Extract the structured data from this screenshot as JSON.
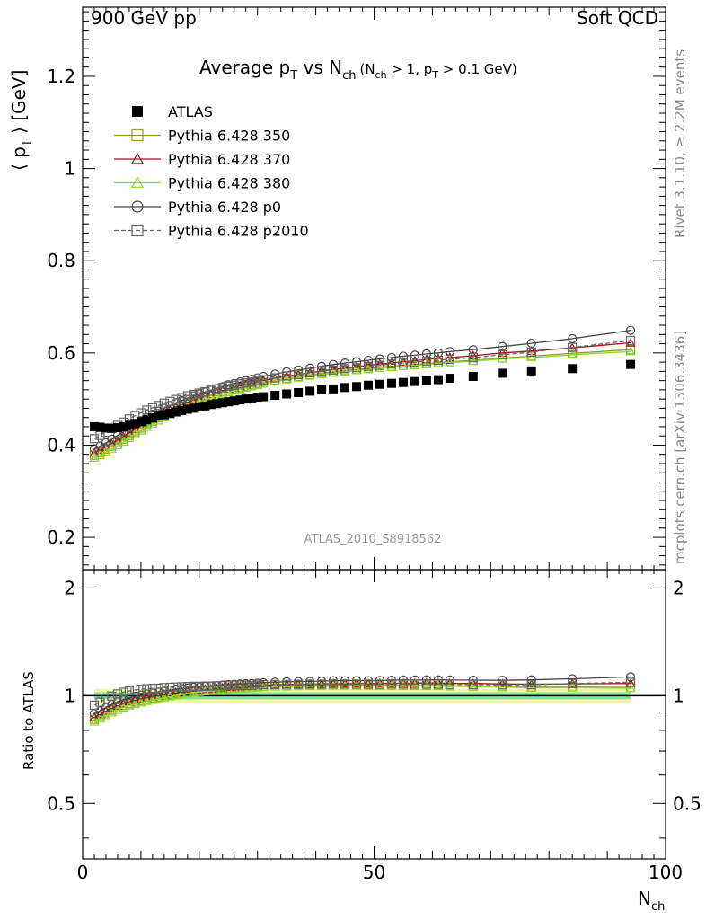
{
  "header": {
    "left": "900 GeV pp",
    "right": "Soft QCD"
  },
  "title": {
    "main": "Average p",
    "main_sub": "T",
    "vs": " vs N",
    "vs_sub": "ch",
    "cuts": "(N",
    "cuts_sub1": "ch",
    "cuts_mid": " > 1, p",
    "cuts_sub2": "T",
    "cuts_end": " > 0.1 GeV)"
  },
  "side_labels": {
    "rivet": "Rivet 3.1.10, ≥ 2.2M events",
    "mcplots": "mcplots.cern.ch [arXiv:1306.3436]"
  },
  "watermark": "ATLAS_2010_S8918562",
  "axes": {
    "main_ylabel": "⟨ p",
    "main_ylabel_sub": "T",
    "main_ylabel_end": " ⟩  [GeV]",
    "ratio_ylabel": "Ratio to ATLAS",
    "xlabel": "N",
    "xlabel_sub": "ch"
  },
  "chart_data": {
    "type": "scatter",
    "xlim": [
      0,
      100
    ],
    "ylim": [
      0.13,
      1.35
    ],
    "ratio_ylim": [
      0.35,
      2.25
    ],
    "x_ticks": [
      "0",
      "50",
      "100"
    ],
    "y_ticks": [
      "0.2",
      "0.4",
      "0.6",
      "0.8",
      "1",
      "1.2"
    ],
    "ratio_ticks": [
      "0.5",
      "1",
      "2"
    ],
    "legend_position": "top-left",
    "x": [
      2,
      3,
      4,
      5,
      6,
      7,
      8,
      9,
      10,
      11,
      12,
      13,
      14,
      15,
      16,
      17,
      18,
      19,
      20,
      21,
      22,
      23,
      24,
      25,
      26,
      27,
      28,
      29,
      30,
      31,
      33,
      35,
      37,
      39,
      41,
      43,
      45,
      47,
      49,
      51,
      53,
      55,
      57,
      59,
      61,
      63,
      67,
      72,
      77,
      84,
      94
    ],
    "series": [
      {
        "name": "ATLAS",
        "color": "#000000",
        "marker": "filled-square",
        "values": [
          0.44,
          0.439,
          0.437,
          0.437,
          0.438,
          0.44,
          0.443,
          0.447,
          0.451,
          0.455,
          0.459,
          0.463,
          0.466,
          0.469,
          0.472,
          0.475,
          0.478,
          0.48,
          0.483,
          0.485,
          0.488,
          0.49,
          0.492,
          0.494,
          0.496,
          0.498,
          0.5,
          0.502,
          0.504,
          0.505,
          0.508,
          0.511,
          0.514,
          0.517,
          0.52,
          0.522,
          0.525,
          0.527,
          0.53,
          0.532,
          0.534,
          0.536,
          0.538,
          0.54,
          0.542,
          0.545,
          0.549,
          0.556,
          0.561,
          0.566,
          0.575
        ]
      },
      {
        "name": "Pythia 6.428 350",
        "color": "#999933",
        "marker": "open-square",
        "values": [
          0.378,
          0.384,
          0.391,
          0.398,
          0.405,
          0.413,
          0.421,
          0.429,
          0.437,
          0.445,
          0.452,
          0.459,
          0.466,
          0.472,
          0.478,
          0.484,
          0.489,
          0.494,
          0.499,
          0.503,
          0.507,
          0.511,
          0.515,
          0.519,
          0.522,
          0.525,
          0.528,
          0.531,
          0.534,
          0.536,
          0.541,
          0.545,
          0.549,
          0.553,
          0.556,
          0.559,
          0.562,
          0.564,
          0.567,
          0.569,
          0.571,
          0.573,
          0.575,
          0.577,
          0.579,
          0.581,
          0.584,
          0.589,
          0.593,
          0.599,
          0.607
        ]
      },
      {
        "name": "Pythia 6.428 370",
        "color": "#aa1122",
        "marker": "open-triangle",
        "values": [
          0.383,
          0.389,
          0.396,
          0.403,
          0.41,
          0.418,
          0.426,
          0.434,
          0.442,
          0.449,
          0.456,
          0.463,
          0.47,
          0.476,
          0.482,
          0.487,
          0.492,
          0.497,
          0.501,
          0.506,
          0.51,
          0.514,
          0.518,
          0.522,
          0.525,
          0.528,
          0.531,
          0.534,
          0.537,
          0.54,
          0.545,
          0.549,
          0.553,
          0.557,
          0.561,
          0.564,
          0.567,
          0.57,
          0.573,
          0.576,
          0.578,
          0.581,
          0.583,
          0.586,
          0.588,
          0.59,
          0.594,
          0.6,
          0.604,
          0.611,
          0.622
        ]
      },
      {
        "name": "Pythia 6.428 380",
        "color": "#88dd22",
        "marker": "open-triangle",
        "values": [
          0.372,
          0.378,
          0.385,
          0.392,
          0.399,
          0.407,
          0.415,
          0.423,
          0.431,
          0.439,
          0.446,
          0.453,
          0.46,
          0.466,
          0.472,
          0.478,
          0.484,
          0.489,
          0.494,
          0.498,
          0.502,
          0.506,
          0.51,
          0.514,
          0.518,
          0.521,
          0.524,
          0.527,
          0.53,
          0.533,
          0.538,
          0.542,
          0.546,
          0.55,
          0.553,
          0.556,
          0.559,
          0.562,
          0.564,
          0.567,
          0.569,
          0.571,
          0.573,
          0.575,
          0.577,
          0.579,
          0.582,
          0.587,
          0.59,
          0.596,
          0.603
        ]
      },
      {
        "name": "Pythia 6.428 p0",
        "color": "#444444",
        "marker": "open-circle",
        "values": [
          0.392,
          0.398,
          0.405,
          0.413,
          0.421,
          0.429,
          0.437,
          0.445,
          0.453,
          0.46,
          0.467,
          0.474,
          0.48,
          0.486,
          0.492,
          0.497,
          0.502,
          0.507,
          0.511,
          0.515,
          0.519,
          0.523,
          0.527,
          0.531,
          0.534,
          0.537,
          0.54,
          0.543,
          0.546,
          0.549,
          0.554,
          0.559,
          0.563,
          0.567,
          0.571,
          0.575,
          0.578,
          0.581,
          0.584,
          0.587,
          0.59,
          0.593,
          0.595,
          0.598,
          0.6,
          0.603,
          0.607,
          0.614,
          0.621,
          0.631,
          0.649
        ]
      },
      {
        "name": "Pythia 6.428 p2010",
        "color": "#666666",
        "marker": "open-square-dashed",
        "values": [
          0.414,
          0.421,
          0.428,
          0.436,
          0.443,
          0.45,
          0.457,
          0.464,
          0.47,
          0.476,
          0.481,
          0.486,
          0.491,
          0.495,
          0.499,
          0.503,
          0.507,
          0.51,
          0.513,
          0.516,
          0.519,
          0.522,
          0.525,
          0.528,
          0.53,
          0.533,
          0.535,
          0.537,
          0.54,
          0.542,
          0.546,
          0.55,
          0.553,
          0.557,
          0.56,
          0.563,
          0.566,
          0.568,
          0.571,
          0.573,
          0.576,
          0.578,
          0.58,
          0.582,
          0.584,
          0.586,
          0.59,
          0.596,
          0.602,
          0.612,
          0.627
        ]
      }
    ]
  }
}
